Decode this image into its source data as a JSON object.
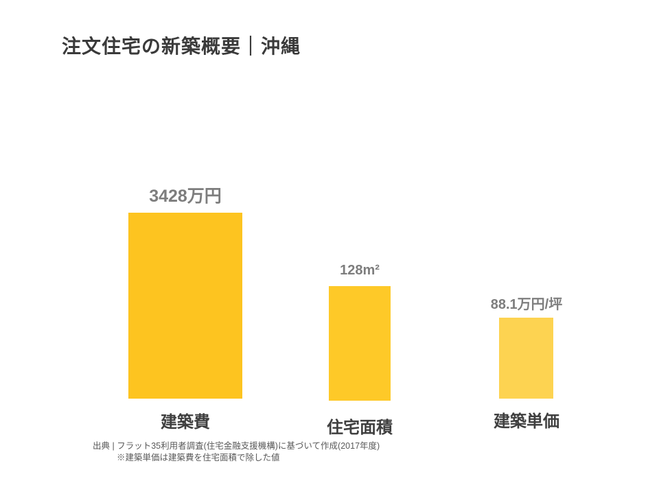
{
  "header": {
    "title": "注文住宅の新築概要｜沖縄"
  },
  "chart": {
    "bars": [
      {
        "category": "建築費",
        "value_label": "3428万円",
        "color": "#FDC420"
      },
      {
        "category": "住宅面積",
        "value_label": "128m²",
        "color": "#FEC928"
      },
      {
        "category": "建築単価",
        "value_label": "88.1万円/坪",
        "color": "#FDD351"
      }
    ]
  },
  "footer": {
    "source_line": "出典 | フラット35利用者調査(住宅金融支援機構)に基づいて作成(2017年度)",
    "note_line": "※建築単価は建築費を住宅面積で除した値"
  },
  "chart_data": {
    "type": "bar",
    "title": "注文住宅の新築概要｜沖縄",
    "categories": [
      "建築費",
      "住宅面積",
      "建築単価"
    ],
    "values": [
      3428,
      128,
      88.1
    ],
    "value_units": [
      "万円",
      "m²",
      "万円/坪"
    ],
    "value_labels": [
      "3428万円",
      "128m²",
      "88.1万円/坪"
    ],
    "bar_colors": [
      "#FDC420",
      "#FEC928",
      "#FDD351"
    ],
    "xlabel": "",
    "ylabel": "",
    "grid": false,
    "legend": false,
    "axis_ticks": false,
    "layout_note": "three独立 bars, each metric on its own scale; relative pixel heights 271:167:118",
    "annotations": [
      "出典 | フラット35利用者調査(住宅金融支援機構)に基づいて作成(2017年度)",
      "※建築単価は建築費を住宅面積で除した値"
    ]
  }
}
